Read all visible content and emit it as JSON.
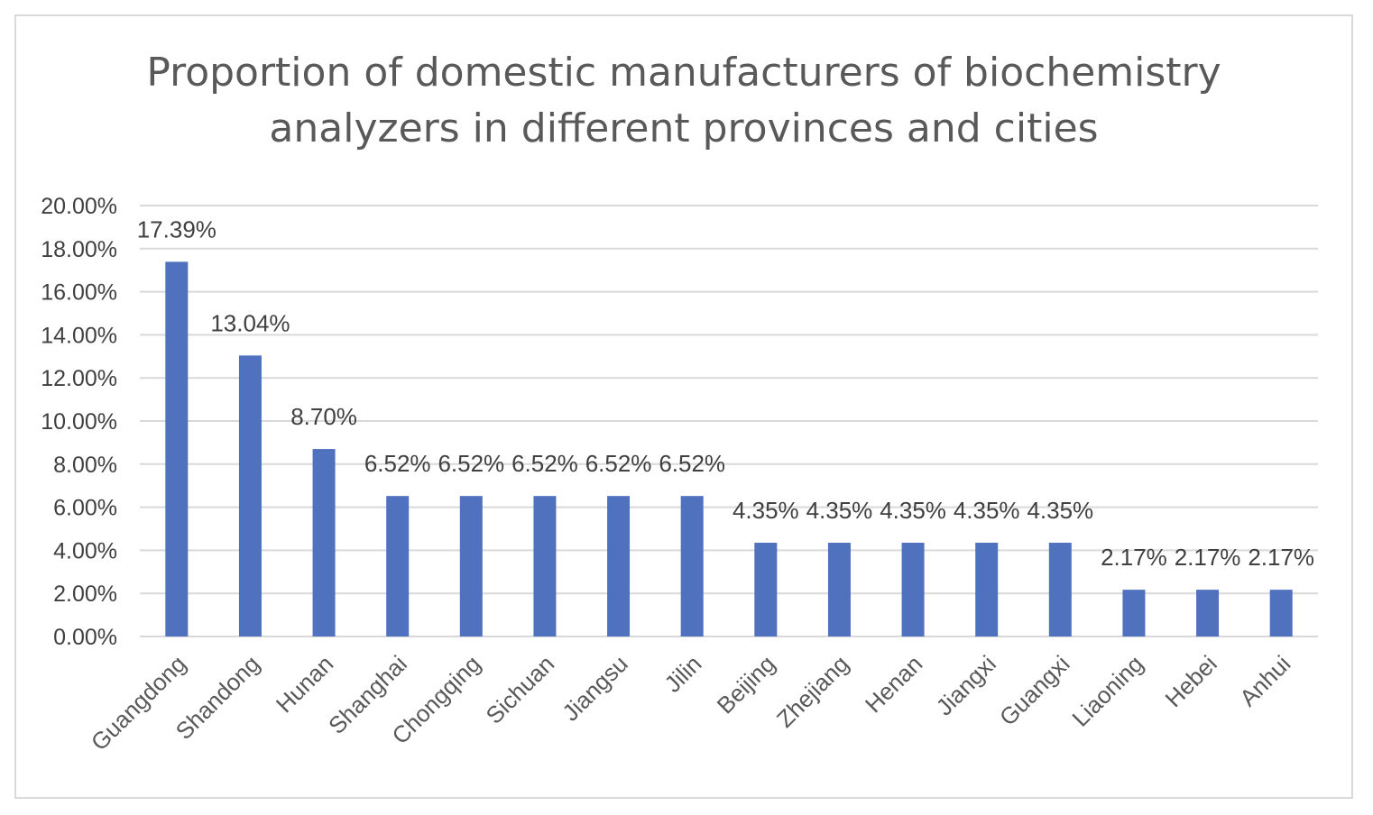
{
  "chart_data": {
    "type": "bar",
    "title_lines": [
      "Proportion of domestic manufacturers of biochemistry",
      "analyzers in different provinces and cities"
    ],
    "categories": [
      "Guangdong",
      "Shandong",
      "Hunan",
      "Shanghai",
      "Chongqing",
      "Sichuan",
      "Jiangsu",
      "Jilin",
      "Beijing",
      "Zhejiang",
      "Henan",
      "Jiangxi",
      "Guangxi",
      "Liaoning",
      "Hebei",
      "Anhui"
    ],
    "values": [
      17.39,
      13.04,
      8.7,
      6.52,
      6.52,
      6.52,
      6.52,
      6.52,
      4.35,
      4.35,
      4.35,
      4.35,
      4.35,
      2.17,
      2.17,
      2.17
    ],
    "data_labels": [
      "17.39%",
      "13.04%",
      "8.70%",
      "6.52%",
      "6.52%",
      "6.52%",
      "6.52%",
      "6.52%",
      "4.35%",
      "4.35%",
      "4.35%",
      "4.35%",
      "4.35%",
      "2.17%",
      "2.17%",
      "2.17%"
    ],
    "yticks": [
      "0.00%",
      "2.00%",
      "4.00%",
      "6.00%",
      "8.00%",
      "10.00%",
      "12.00%",
      "14.00%",
      "16.00%",
      "18.00%",
      "20.00%"
    ],
    "ylim": [
      0,
      20
    ],
    "xlabel": "",
    "ylabel": "",
    "grid": true,
    "bar_color": "#4f71be",
    "grid_color": "#d9d9d9"
  }
}
